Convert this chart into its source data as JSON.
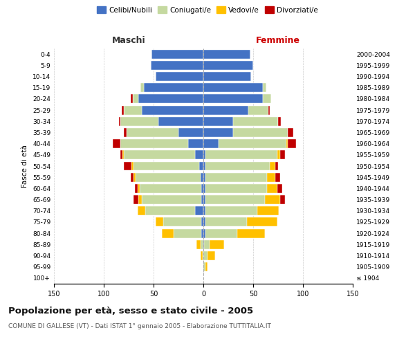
{
  "age_groups": [
    "100+",
    "95-99",
    "90-94",
    "85-89",
    "80-84",
    "75-79",
    "70-74",
    "65-69",
    "60-64",
    "55-59",
    "50-54",
    "45-49",
    "40-44",
    "35-39",
    "30-34",
    "25-29",
    "20-24",
    "15-19",
    "10-14",
    "5-9",
    "0-4"
  ],
  "birth_years": [
    "≤ 1904",
    "1905-1909",
    "1910-1914",
    "1915-1919",
    "1920-1924",
    "1925-1929",
    "1930-1934",
    "1935-1939",
    "1940-1944",
    "1945-1949",
    "1950-1954",
    "1955-1959",
    "1960-1964",
    "1965-1969",
    "1970-1974",
    "1975-1979",
    "1980-1984",
    "1985-1989",
    "1990-1994",
    "1995-1999",
    "2000-2004"
  ],
  "maschi": {
    "celibi": [
      0,
      0,
      0,
      0,
      2,
      2,
      8,
      2,
      2,
      3,
      4,
      8,
      15,
      25,
      45,
      62,
      65,
      60,
      48,
      53,
      52
    ],
    "coniugati": [
      0,
      0,
      1,
      3,
      28,
      38,
      50,
      60,
      62,
      65,
      66,
      72,
      68,
      52,
      38,
      18,
      6,
      3,
      0,
      0,
      0
    ],
    "vedovi": [
      0,
      0,
      2,
      4,
      12,
      8,
      8,
      3,
      2,
      2,
      2,
      1,
      0,
      0,
      0,
      0,
      0,
      0,
      0,
      0,
      0
    ],
    "divorziati": [
      0,
      0,
      0,
      0,
      0,
      0,
      0,
      5,
      3,
      3,
      8,
      2,
      8,
      3,
      2,
      2,
      2,
      0,
      0,
      0,
      0
    ]
  },
  "femmine": {
    "nubili": [
      0,
      0,
      0,
      1,
      2,
      2,
      2,
      2,
      2,
      2,
      2,
      2,
      15,
      30,
      30,
      45,
      60,
      60,
      48,
      50,
      47
    ],
    "coniugate": [
      0,
      2,
      4,
      5,
      32,
      42,
      52,
      60,
      62,
      62,
      65,
      72,
      68,
      55,
      45,
      20,
      8,
      3,
      0,
      0,
      0
    ],
    "vedove": [
      0,
      2,
      8,
      15,
      28,
      30,
      22,
      15,
      10,
      8,
      5,
      3,
      2,
      0,
      0,
      0,
      0,
      0,
      0,
      0,
      0
    ],
    "divorziate": [
      0,
      0,
      0,
      0,
      0,
      0,
      0,
      5,
      5,
      5,
      3,
      5,
      8,
      5,
      3,
      2,
      0,
      0,
      0,
      0,
      0
    ]
  },
  "colors": {
    "celibi": "#4472c4",
    "coniugati": "#c5d9a0",
    "vedovi": "#ffc000",
    "divorziati": "#c00000"
  },
  "legend_labels": [
    "Celibi/Nubili",
    "Coniugati/e",
    "Vedovi/e",
    "Divorziati/e"
  ],
  "title": "Popolazione per età, sesso e stato civile - 2005",
  "subtitle": "COMUNE DI GALLESE (VT) - Dati ISTAT 1° gennaio 2005 - Elaborazione TUTTITALIA.IT",
  "xlabel_left": "Maschi",
  "xlabel_right": "Femmine",
  "ylabel_left": "Fasce di età",
  "xlim": 150,
  "background_color": "#ffffff",
  "grid_color": "#cccccc"
}
